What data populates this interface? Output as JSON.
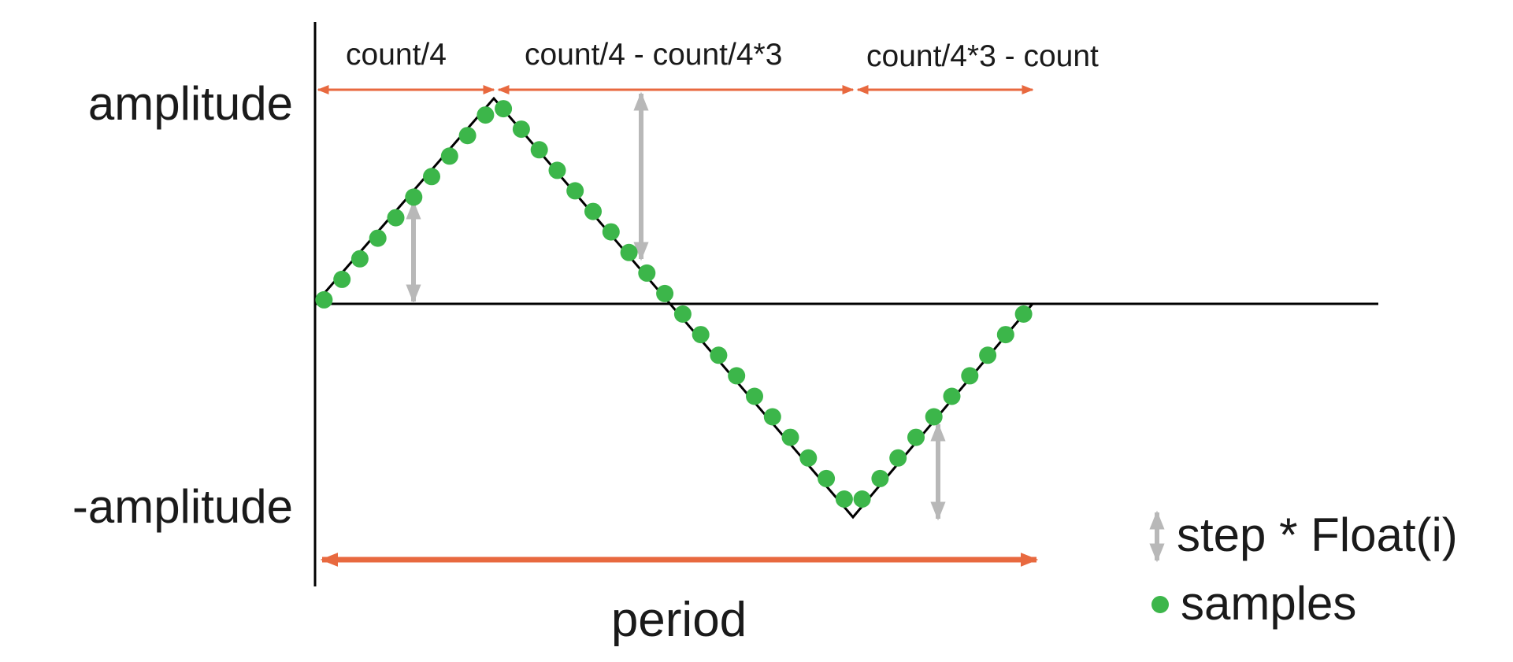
{
  "diagram": {
    "y_labels": {
      "top": "amplitude",
      "bottom": "-amplitude"
    },
    "segments": [
      {
        "label": "count/4"
      },
      {
        "label": "count/4 - count/4*3"
      },
      {
        "label": "count/4*3 - count"
      }
    ],
    "period_label": "period",
    "legend": {
      "step": "step * Float(i)",
      "samples": "samples"
    },
    "colors": {
      "waveform": "#000000",
      "samples": "#3cb64a",
      "segment_arrows": "#e8693f",
      "step_arrows": "#b8b8b8",
      "axes": "#000000",
      "text": "#1a1a1a"
    },
    "sample_count": 40,
    "waveform": "triangle"
  }
}
